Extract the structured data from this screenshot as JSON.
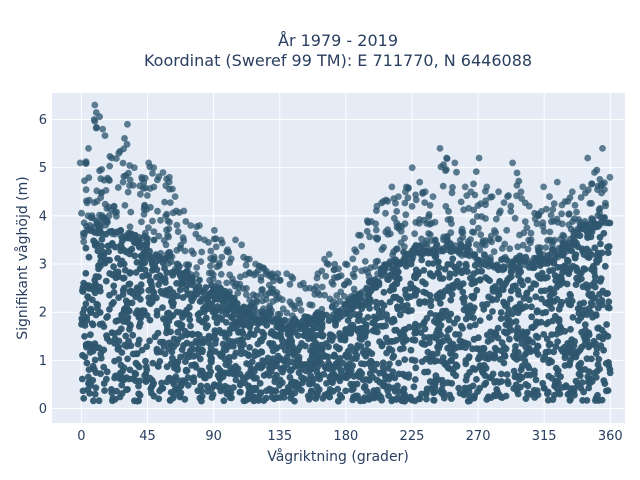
{
  "chart_data": {
    "type": "scatter",
    "title_line1": "År 1979 - 2019",
    "title_line2": "Koordinat (Sweref 99 TM): E 711770, N 6446088",
    "xlabel": "Vågriktning (grader)",
    "ylabel": "Signifikant våghöjd (m)",
    "xlim": [
      -20,
      370
    ],
    "ylim": [
      -0.3,
      6.55
    ],
    "x_ticks": [
      0,
      45,
      90,
      135,
      180,
      225,
      270,
      315,
      360
    ],
    "y_ticks": [
      0,
      1,
      2,
      3,
      4,
      5,
      6
    ],
    "grid": true,
    "colors": {
      "plot_bg": "#e5ecf6",
      "grid": "#ffffff",
      "marker": "#2e566e",
      "text": "#2a3f5f"
    },
    "envelope": {
      "direction": [
        0,
        5,
        10,
        15,
        20,
        25,
        30,
        35,
        40,
        45,
        50,
        55,
        60,
        65,
        70,
        75,
        80,
        85,
        90,
        95,
        100,
        105,
        110,
        115,
        120,
        125,
        130,
        135,
        140,
        145,
        150,
        155,
        160,
        165,
        170,
        175,
        180,
        185,
        190,
        195,
        200,
        205,
        210,
        215,
        220,
        225,
        230,
        235,
        240,
        245,
        250,
        255,
        260,
        265,
        270,
        275,
        280,
        285,
        290,
        295,
        300,
        305,
        310,
        315,
        320,
        325,
        330,
        335,
        340,
        345,
        350,
        355,
        360
      ],
      "dense_top": [
        3.6,
        3.9,
        4.0,
        4.0,
        3.9,
        3.8,
        3.8,
        3.7,
        3.6,
        3.6,
        3.5,
        3.3,
        3.2,
        3.0,
        2.9,
        2.8,
        2.7,
        2.6,
        2.6,
        2.5,
        2.4,
        2.3,
        2.2,
        2.2,
        2.1,
        2.0,
        2.0,
        1.9,
        1.9,
        1.9,
        1.9,
        2.0,
        2.0,
        2.0,
        2.1,
        2.1,
        2.2,
        2.3,
        2.4,
        2.6,
        2.8,
        3.0,
        3.1,
        3.2,
        3.3,
        3.4,
        3.4,
        3.5,
        3.5,
        3.5,
        3.5,
        3.5,
        3.4,
        3.4,
        3.3,
        3.2,
        3.2,
        3.1,
        3.1,
        3.1,
        3.2,
        3.2,
        3.3,
        3.3,
        3.3,
        3.4,
        3.5,
        3.6,
        3.8,
        3.9,
        4.0,
        4.1,
        4.1
      ],
      "sparse_top": [
        5.1,
        5.4,
        6.3,
        5.8,
        5.2,
        5.3,
        5.9,
        5.0,
        4.8,
        5.1,
        5.0,
        4.9,
        4.8,
        4.4,
        4.1,
        3.8,
        3.8,
        3.5,
        3.7,
        3.5,
        3.3,
        3.5,
        3.4,
        3.1,
        3.0,
        2.9,
        2.8,
        2.8,
        2.8,
        2.7,
        2.6,
        2.5,
        2.8,
        3.1,
        3.2,
        2.9,
        3.0,
        3.3,
        3.6,
        3.9,
        4.2,
        4.3,
        4.6,
        4.4,
        4.5,
        5.0,
        4.7,
        4.5,
        4.4,
        5.4,
        5.2,
        5.1,
        4.6,
        4.5,
        5.2,
        4.6,
        4.4,
        4.5,
        4.4,
        5.1,
        4.5,
        4.2,
        4.0,
        4.6,
        4.4,
        4.7,
        4.3,
        4.5,
        4.6,
        5.2,
        4.9,
        5.4,
        4.8
      ]
    }
  }
}
